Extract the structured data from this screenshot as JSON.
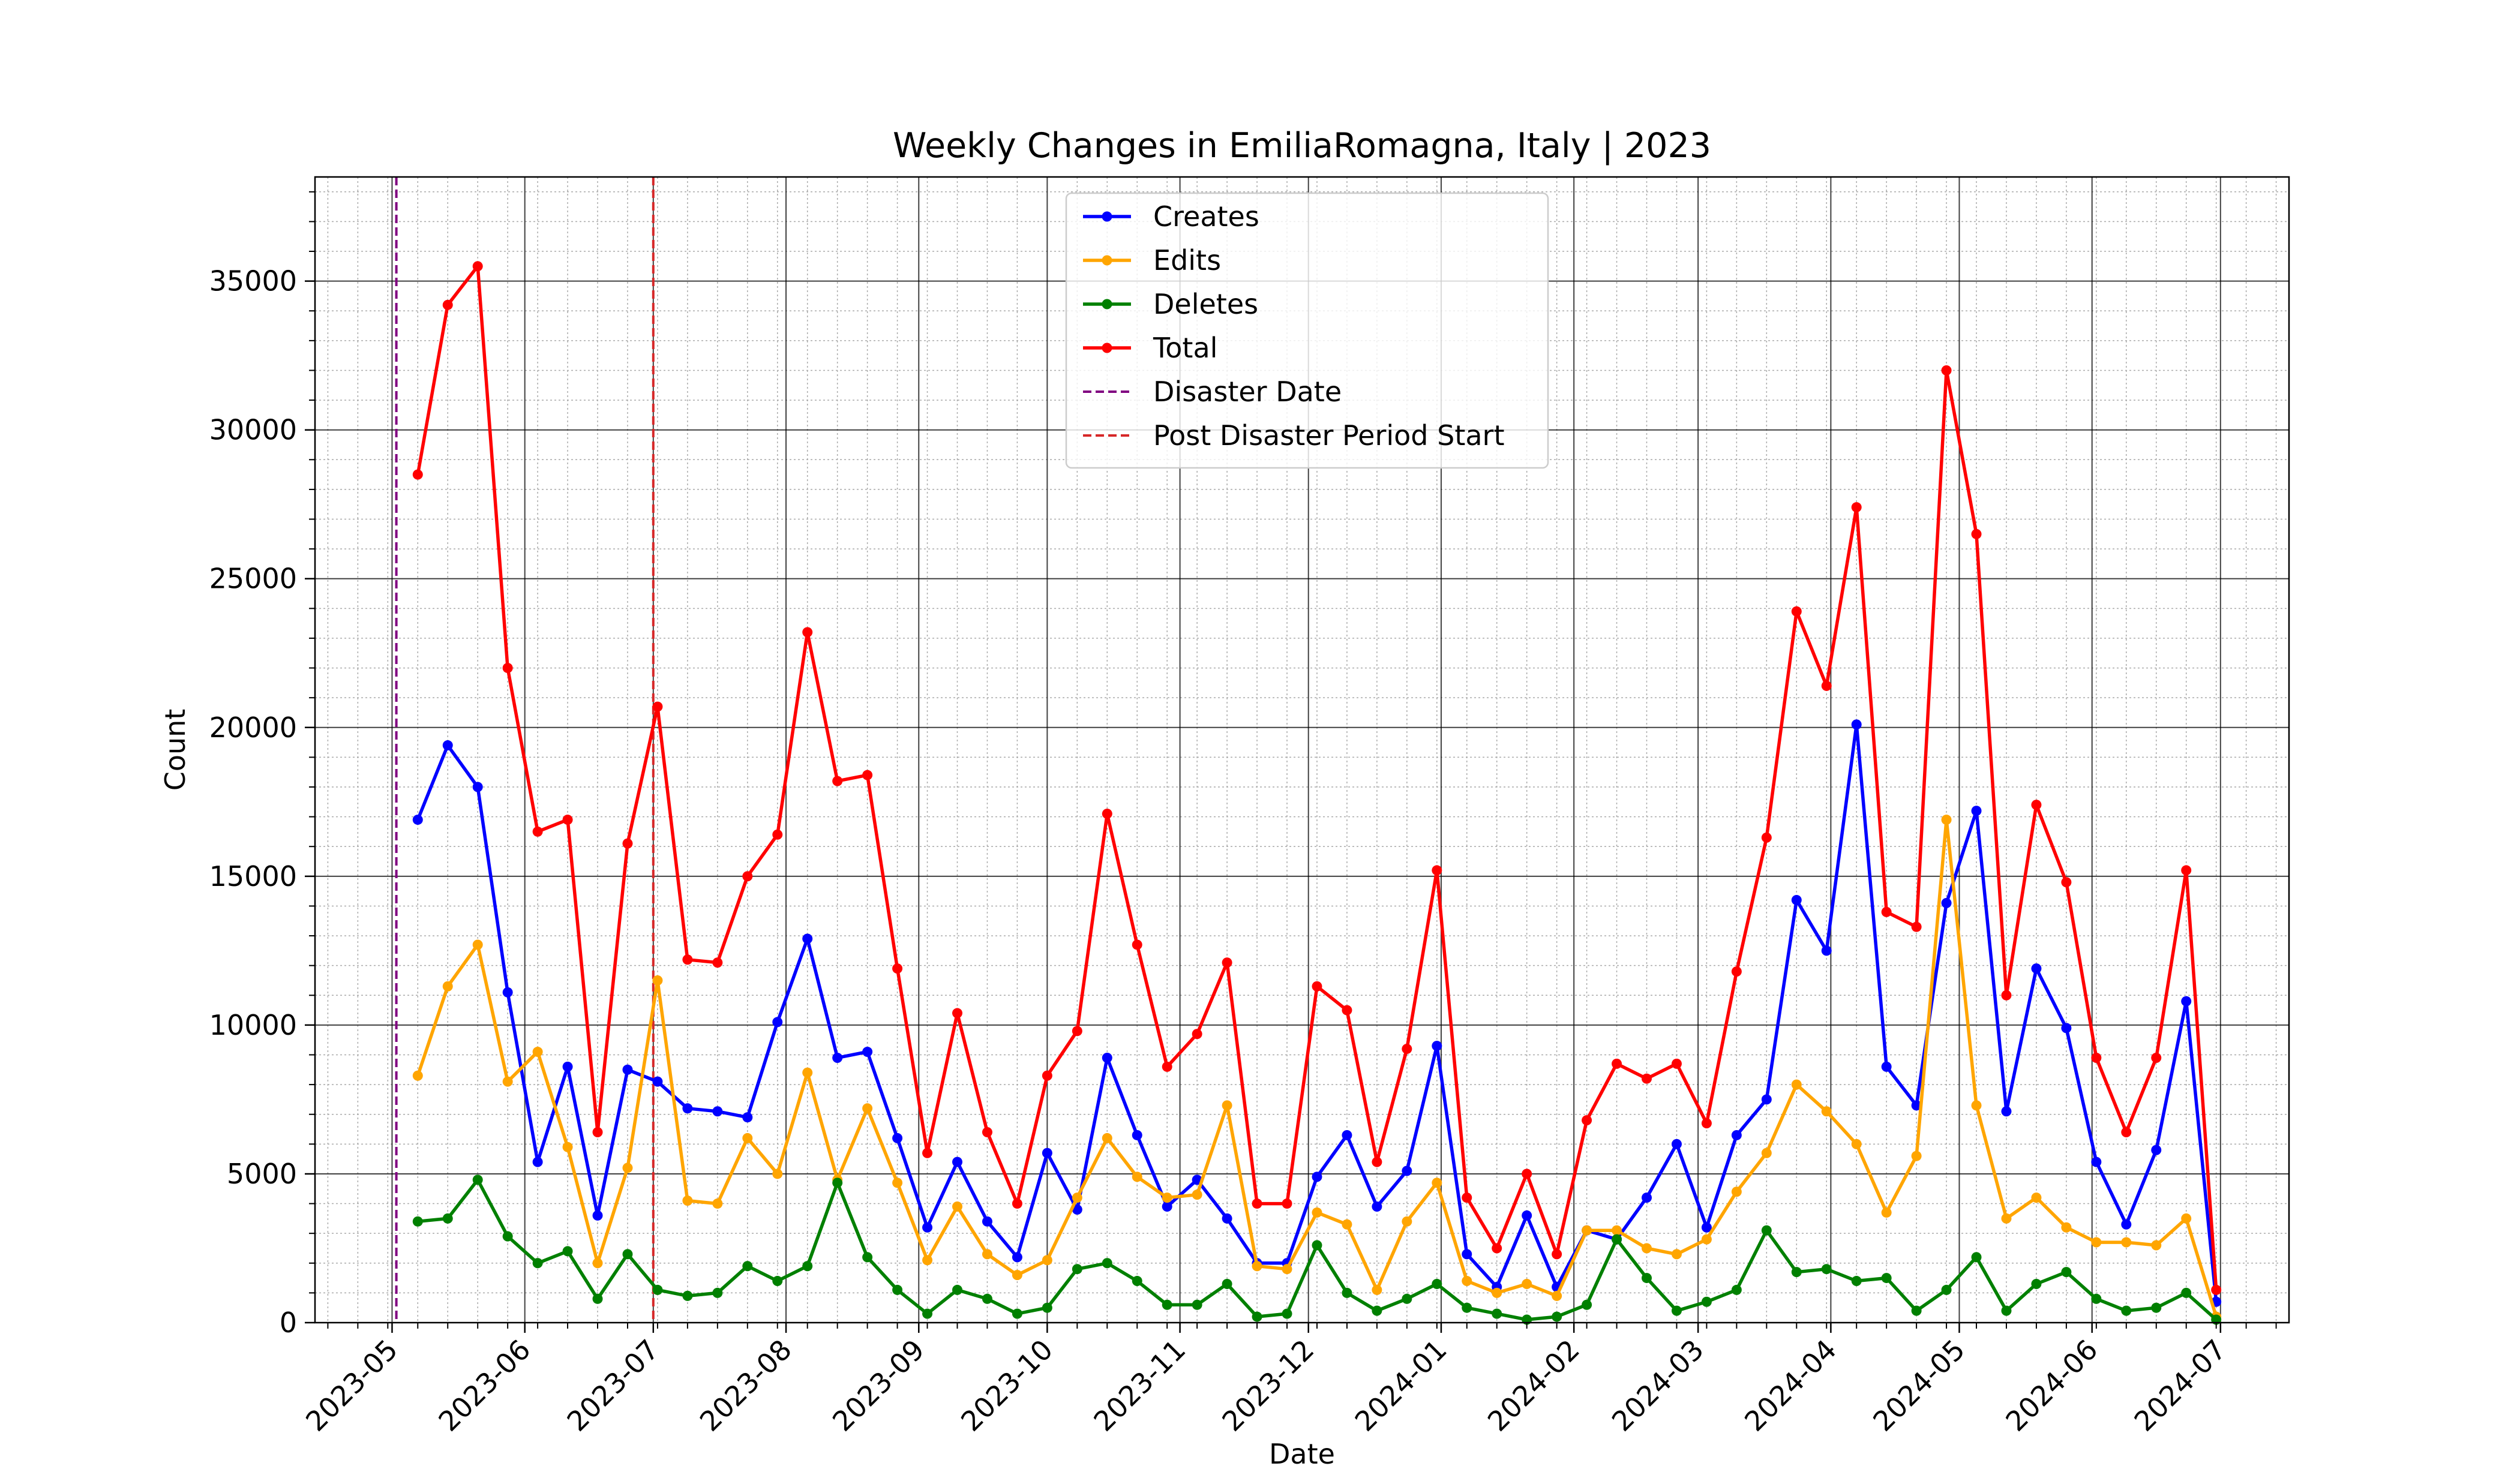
{
  "chart_data": {
    "type": "line",
    "title": "Weekly Changes in EmiliaRomagna, Italy | 2023",
    "xlabel": "Date",
    "ylabel": "Count",
    "xlim": [
      "2023-04-13",
      "2024-07-17"
    ],
    "ylim": [
      0,
      38500
    ],
    "x_ticks": [
      "2023-05",
      "2023-06",
      "2023-07",
      "2023-08",
      "2023-09",
      "2023-10",
      "2023-11",
      "2023-12",
      "2024-01",
      "2024-02",
      "2024-03",
      "2024-04",
      "2024-05",
      "2024-06",
      "2024-07"
    ],
    "y_ticks": [
      0,
      5000,
      10000,
      15000,
      20000,
      25000,
      30000,
      35000
    ],
    "grid": "major and minor",
    "legend_position": "top-center",
    "x": [
      "2023-05-07",
      "2023-05-14",
      "2023-05-21",
      "2023-05-28",
      "2023-06-04",
      "2023-06-11",
      "2023-06-18",
      "2023-06-25",
      "2023-07-02",
      "2023-07-09",
      "2023-07-16",
      "2023-07-23",
      "2023-07-30",
      "2023-08-06",
      "2023-08-13",
      "2023-08-20",
      "2023-08-27",
      "2023-09-03",
      "2023-09-10",
      "2023-09-17",
      "2023-09-24",
      "2023-10-01",
      "2023-10-08",
      "2023-10-15",
      "2023-10-22",
      "2023-10-29",
      "2023-11-05",
      "2023-11-12",
      "2023-11-19",
      "2023-11-26",
      "2023-12-03",
      "2023-12-10",
      "2023-12-17",
      "2023-12-24",
      "2023-12-31",
      "2024-01-07",
      "2024-01-14",
      "2024-01-21",
      "2024-01-28",
      "2024-02-04",
      "2024-02-11",
      "2024-02-18",
      "2024-02-25",
      "2024-03-03",
      "2024-03-10",
      "2024-03-17",
      "2024-03-24",
      "2024-03-31",
      "2024-04-07",
      "2024-04-14",
      "2024-04-21",
      "2024-04-28",
      "2024-05-05",
      "2024-05-12",
      "2024-05-19",
      "2024-05-26",
      "2024-06-02",
      "2024-06-09",
      "2024-06-16",
      "2024-06-23",
      "2024-06-30"
    ],
    "series": [
      {
        "name": "Creates",
        "color": "#0000ff",
        "values": [
          16900,
          19400,
          18000,
          11100,
          5400,
          8600,
          3600,
          8500,
          8100,
          7200,
          7100,
          6900,
          10100,
          12900,
          8900,
          9100,
          6200,
          3200,
          5400,
          3400,
          2200,
          5700,
          3800,
          8900,
          6300,
          3900,
          4800,
          3500,
          2000,
          2000,
          4900,
          6300,
          3900,
          5100,
          9300,
          2300,
          1200,
          3600,
          1200,
          3100,
          2800,
          4200,
          6000,
          3200,
          6300,
          7500,
          14200,
          12500,
          20100,
          8600,
          7300,
          14100,
          17200,
          7100,
          11900,
          9900,
          5400,
          3300,
          5800,
          10800,
          700
        ]
      },
      {
        "name": "Edits",
        "color": "#ffa500",
        "values": [
          8300,
          11300,
          12700,
          8100,
          9100,
          5900,
          2000,
          5200,
          11500,
          4100,
          4000,
          6200,
          5000,
          8400,
          4800,
          7200,
          4700,
          2100,
          3900,
          2300,
          1600,
          2100,
          4200,
          6200,
          4900,
          4200,
          4300,
          7300,
          1900,
          1800,
          3700,
          3300,
          1100,
          3400,
          4700,
          1400,
          1000,
          1300,
          900,
          3100,
          3100,
          2500,
          2300,
          2800,
          4400,
          5700,
          8000,
          7100,
          6000,
          3700,
          5600,
          16900,
          7300,
          3500,
          4200,
          3200,
          2700,
          2700,
          2600,
          3500,
          200
        ]
      },
      {
        "name": "Deletes",
        "color": "#008000",
        "values": [
          3400,
          3500,
          4800,
          2900,
          2000,
          2400,
          800,
          2300,
          1100,
          900,
          1000,
          1900,
          1400,
          1900,
          4700,
          2200,
          1100,
          300,
          1100,
          800,
          300,
          500,
          1800,
          2000,
          1400,
          600,
          600,
          1300,
          200,
          300,
          2600,
          1000,
          400,
          800,
          1300,
          500,
          300,
          100,
          200,
          600,
          2800,
          1500,
          400,
          700,
          1100,
          3100,
          1700,
          1800,
          1400,
          1500,
          400,
          1100,
          2200,
          400,
          1300,
          1700,
          800,
          400,
          500,
          1000,
          100
        ]
      },
      {
        "name": "Total",
        "color": "#ff0000",
        "values": [
          28500,
          34200,
          35500,
          22000,
          16500,
          16900,
          6400,
          16100,
          20700,
          12200,
          12100,
          15000,
          16400,
          23200,
          18200,
          18400,
          11900,
          5700,
          10400,
          6400,
          4000,
          8300,
          9800,
          17100,
          12700,
          8600,
          9700,
          12100,
          4000,
          4000,
          11300,
          10500,
          5400,
          9200,
          15200,
          4200,
          2500,
          5000,
          2300,
          6800,
          8700,
          8200,
          8700,
          6700,
          11800,
          16300,
          23900,
          21400,
          27400,
          13800,
          13300,
          32000,
          26500,
          11000,
          17400,
          14800,
          8900,
          6400,
          8900,
          15200,
          1100
        ]
      }
    ],
    "vlines": [
      {
        "name": "Disaster Date",
        "date": "2023-05-02",
        "color": "#800080",
        "style": "dashed"
      },
      {
        "name": "Post Disaster Period Start",
        "date": "2023-07-01",
        "color": "#d62728",
        "style": "dashed"
      }
    ]
  }
}
